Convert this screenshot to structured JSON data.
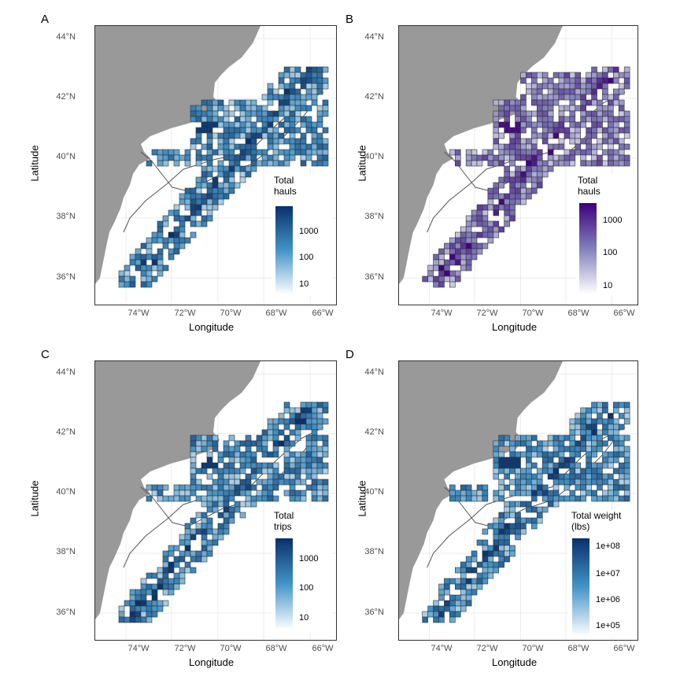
{
  "panels": [
    {
      "tag": "A",
      "legend_title": "Total hauls",
      "legend_ticks": [
        "1000",
        "100",
        "10"
      ],
      "color_low": "#f7fbff",
      "color_high": "#08306b",
      "color_mid": "#4292c6"
    },
    {
      "tag": "B",
      "legend_title": "Total hauls",
      "legend_ticks": [
        "1000",
        "100",
        "10"
      ],
      "color_low": "#fcfbfd",
      "color_high": "#3f007d",
      "color_mid": "#807dba"
    },
    {
      "tag": "C",
      "legend_title": "Total trips",
      "legend_ticks": [
        "1000",
        "100",
        "10"
      ],
      "color_low": "#f7fbff",
      "color_high": "#08306b",
      "color_mid": "#4292c6"
    },
    {
      "tag": "D",
      "legend_title": "Total weight (lbs)",
      "legend_ticks": [
        "1e+08",
        "1e+07",
        "1e+06",
        "1e+05"
      ],
      "color_low": "#f7fbff",
      "color_high": "#08306b",
      "color_mid": "#4292c6"
    }
  ],
  "axes": {
    "xlabel": "Longitude",
    "ylabel": "Latitude",
    "lat_ticks": [
      "44°N",
      "42°N",
      "40°N",
      "38°N",
      "36°N"
    ],
    "lon_ticks": [
      "74°W",
      "72°W",
      "70°W",
      "68°W",
      "66°W"
    ]
  },
  "colors": {
    "land": "#999999",
    "grid": "#ebebeb",
    "cell_border": "#333333"
  }
}
